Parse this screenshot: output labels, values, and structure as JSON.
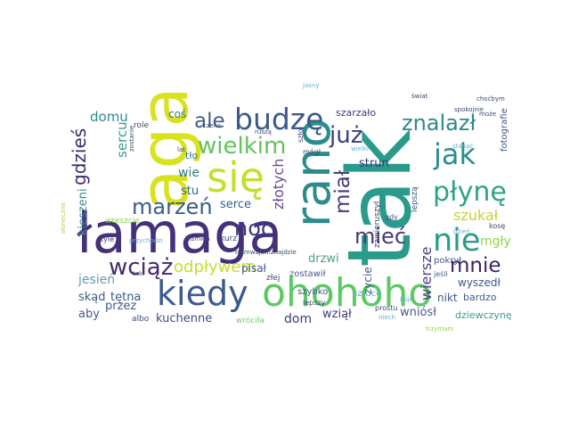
{
  "word_cloud": {
    "words": [
      {
        "text": "tak",
        "color": "#2a9a8a",
        "rotated": true
      },
      {
        "text": "łamaga",
        "color": "#45307a"
      },
      {
        "text": "aga",
        "color": "#d8e21f",
        "rotated": true
      },
      {
        "text": "rano",
        "color": "#2c8c8c",
        "rotated": true
      },
      {
        "text": "ohohoho",
        "color": "#5ec962"
      },
      {
        "text": "się",
        "color": "#c4df2c"
      },
      {
        "text": "kiedy",
        "color": "#3b5a8f"
      },
      {
        "text": "budzę",
        "color": "#3d5a8a"
      },
      {
        "text": "nie",
        "color": "#2c9a8a"
      },
      {
        "text": "jak",
        "color": "#2a8e8c"
      },
      {
        "text": "płynę",
        "color": "#30a386"
      },
      {
        "text": "znalazł",
        "color": "#2c8a8c"
      },
      {
        "text": "już",
        "color": "#3b3f80"
      },
      {
        "text": "wielkim",
        "color": "#62c35c"
      },
      {
        "text": "marzeń",
        "color": "#3b5d89"
      },
      {
        "text": "wciąż",
        "color": "#432a6d"
      },
      {
        "text": "noc",
        "color": "#3c3a7e"
      },
      {
        "text": "mieć",
        "color": "#453a7a"
      },
      {
        "text": "mnie",
        "color": "#3b1f63"
      },
      {
        "text": "miał",
        "color": "#3f3a7c"
      },
      {
        "text": "ale",
        "color": "#3f5c8a"
      },
      {
        "text": "gdzieś",
        "color": "#3e2a6e"
      },
      {
        "text": "odpływem",
        "color": "#c4df2c"
      },
      {
        "text": "złotych",
        "color": "#6a4c94"
      },
      {
        "text": "wiersze",
        "color": "#4a3f86"
      },
      {
        "text": "szukał",
        "color": "#c8d234"
      },
      {
        "text": "mgły",
        "color": "#8fd34a"
      },
      {
        "text": "domu",
        "color": "#2e8a8c"
      },
      {
        "text": "sercu",
        "color": "#3a9a8a"
      },
      {
        "text": "wie",
        "color": "#2a7a8c"
      },
      {
        "text": "stu",
        "color": "#2a6a8c"
      },
      {
        "text": "serce",
        "color": "#3b5d8c"
      },
      {
        "text": "drzwi",
        "color": "#4aa084"
      },
      {
        "text": "strun",
        "color": "#3b3a7e"
      },
      {
        "text": "kieszeni",
        "color": "#3c8a8c"
      },
      {
        "text": "jesień",
        "color": "#5f9db0"
      },
      {
        "text": "skąd",
        "color": "#3b5a8a"
      },
      {
        "text": "tętna",
        "color": "#3a5a8a"
      },
      {
        "text": "aby",
        "color": "#4a5a8a"
      },
      {
        "text": "przez",
        "color": "#3f5c8a"
      },
      {
        "text": "kuchenne",
        "color": "#3f4c8a"
      },
      {
        "text": "dom",
        "color": "#3c3a7e"
      },
      {
        "text": "wziął",
        "color": "#3c3a7e"
      },
      {
        "text": "wniósł",
        "color": "#4a5a8a"
      },
      {
        "text": "nikt",
        "color": "#3b5a8a"
      },
      {
        "text": "wyszedł",
        "color": "#3a5a8a"
      },
      {
        "text": "bardzo",
        "color": "#3f5c8a"
      },
      {
        "text": "dziewczynę",
        "color": "#3a9a8a"
      },
      {
        "text": "pisał",
        "color": "#3b5a8a"
      },
      {
        "text": "zostawił",
        "color": "#4a5a8a"
      },
      {
        "text": "szarzało",
        "color": "#3b3a7e"
      },
      {
        "text": "życie",
        "color": "#3f5c8a"
      },
      {
        "text": "szybko",
        "color": "#3a5a8a"
      },
      {
        "text": "sztuce",
        "color": "#6ab0c8"
      },
      {
        "text": "pokrył",
        "color": "#3a5a8a"
      },
      {
        "text": "fotografie",
        "color": "#3b5a8a"
      },
      {
        "text": "coś",
        "color": "#3a7a8c"
      },
      {
        "text": "tło",
        "color": "#3a7a8c"
      },
      {
        "text": "kurz",
        "color": "#3a4a6a"
      },
      {
        "text": "wreszcie",
        "color": "#8fd34a"
      },
      {
        "text": "wróciła",
        "color": "#7ac870"
      },
      {
        "text": "albo",
        "color": "#3a4a6a"
      },
      {
        "text": "złej",
        "color": "#3a4a6a"
      },
      {
        "text": "lepszy",
        "color": "#3a4a6a"
      },
      {
        "text": "prostu",
        "color": "#3a4a6a"
      },
      {
        "text": "niech",
        "color": "#6ab0c8"
      },
      {
        "text": "trzymam",
        "color": "#8fd34a"
      },
      {
        "text": "lepszą",
        "color": "#3a5a8a"
      },
      {
        "text": "gdy",
        "color": "#4a5a8a"
      },
      {
        "text": "jeśli",
        "color": "#4a5a8a"
      },
      {
        "text": "kosę",
        "color": "#3a4a6a"
      },
      {
        "text": "zawieruszył",
        "color": "#3a4a6a"
      },
      {
        "text": "mógł",
        "color": "#3a4a6a"
      },
      {
        "text": "słoneczne",
        "color": "#b0d040"
      },
      {
        "text": "kamień",
        "color": "#3a4a6a"
      },
      {
        "text": "tyle",
        "color": "#3a4a6a"
      },
      {
        "text": "przychodzi",
        "color": "#6ab0c8"
      },
      {
        "text": "tramwajem",
        "color": "#3a4a6a"
      },
      {
        "text": "znajdzie",
        "color": "#3a4a6a"
      },
      {
        "text": "czeka",
        "color": "#3a4a6a"
      },
      {
        "text": "lat",
        "color": "#3a4a6a"
      },
      {
        "text": "role",
        "color": "#3a4a6a"
      },
      {
        "text": "zostanie",
        "color": "#3a4a6a"
      },
      {
        "text": "szło",
        "color": "#3a4a6a"
      },
      {
        "text": "stanąć",
        "color": "#6ab0c8"
      },
      {
        "text": "spokojnie",
        "color": "#3a4a6a"
      },
      {
        "text": "choćbym",
        "color": "#3a4a6a"
      },
      {
        "text": "może",
        "color": "#3a4a6a"
      },
      {
        "text": "jasny",
        "color": "#6ab0c8"
      },
      {
        "text": "świat",
        "color": "#3a4a6a"
      },
      {
        "text": "wielki",
        "color": "#6ab0c8"
      },
      {
        "text": "dzień",
        "color": "#6ab0c8"
      },
      {
        "text": "boje",
        "color": "#6ab0c8"
      },
      {
        "text": "taki",
        "color": "#3a4a6a"
      },
      {
        "text": "ruszą",
        "color": "#3a4a6a"
      }
    ]
  }
}
